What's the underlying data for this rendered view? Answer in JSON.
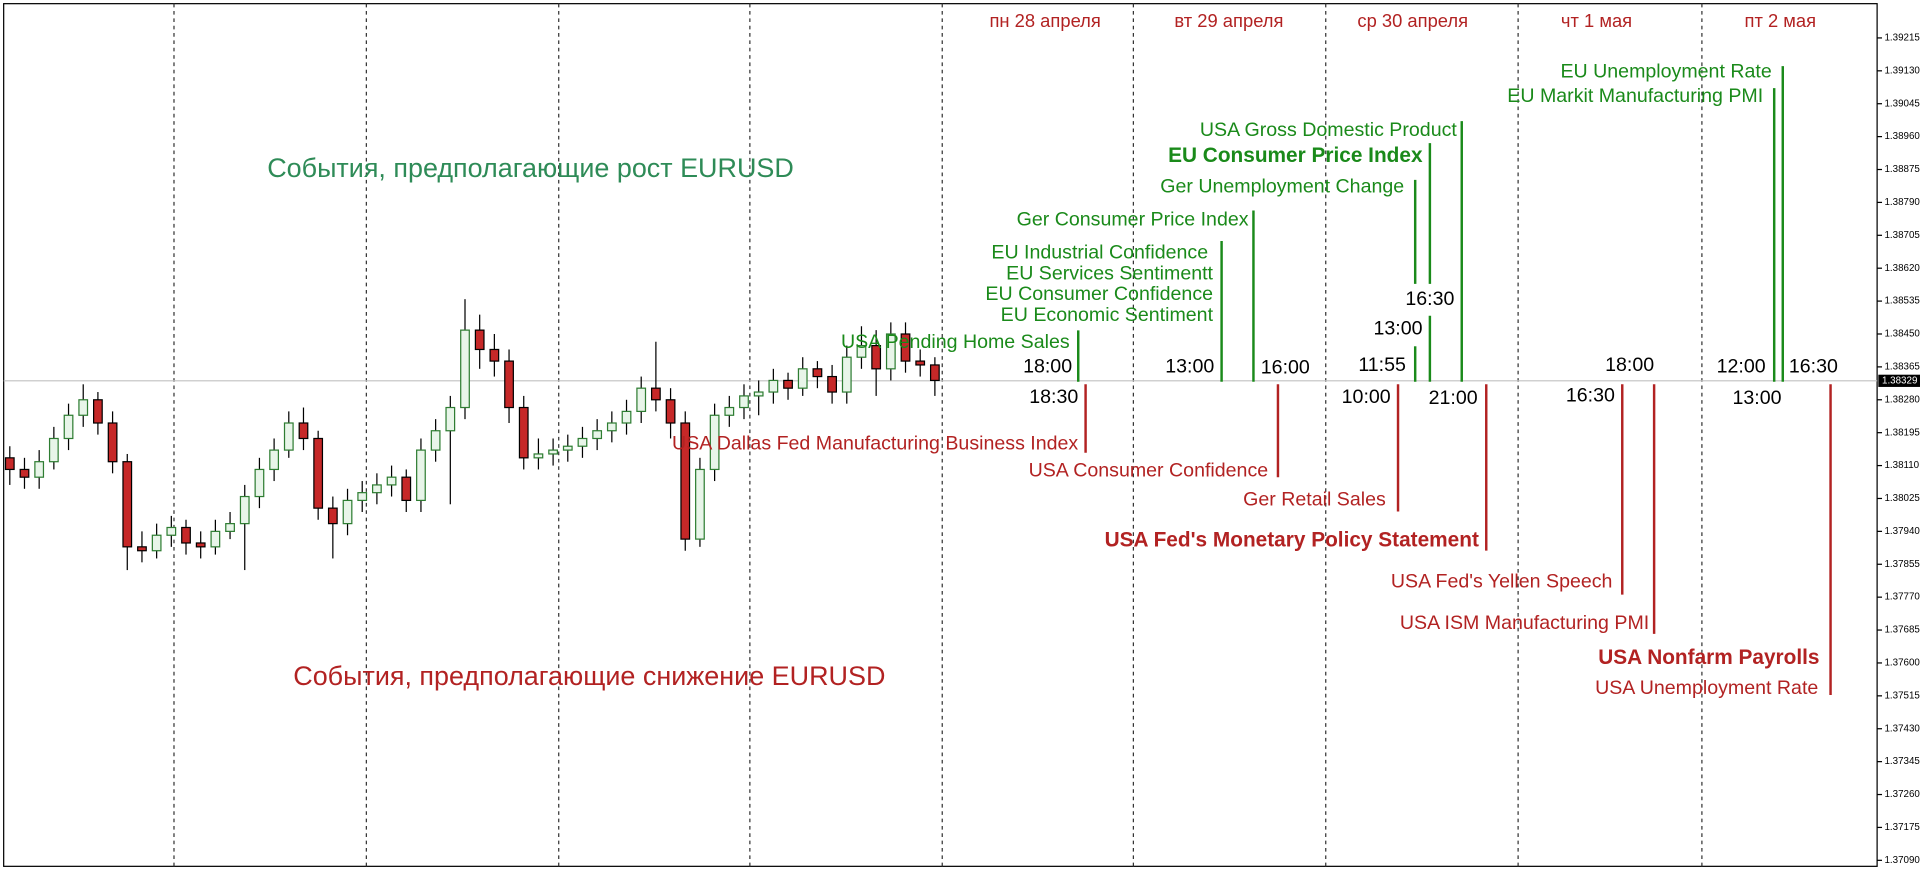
{
  "chart_data": {
    "type": "candlestick",
    "days": [
      "пн 28 апреля",
      "вт 29 апреля",
      "ср 30 апреля",
      "чт 1 мая",
      "пт 2 мая"
    ],
    "heading_rise": "События, предполагающие рост EURUSD",
    "heading_fall": "События, предполагающие снижение EURUSD",
    "events": [
      "USA Pending Home Sales",
      "EU Industrial Confidence",
      "EU Services Sentimentt",
      "EU Consumer Confidence",
      "EU Economic Sentiment",
      "Ger Consumer Price Index",
      "Ger Unemployment Change",
      "EU Consumer Price Index",
      "USA Gross Domestic Product",
      "EU Markit Manufacturing PMI",
      "EU Unemployment Rate",
      "USA Dallas Fed Manufacturing Business Index",
      "USA Consumer Confidence",
      "Ger Retail Sales",
      "USA Fed's Monetary Policy Statement",
      "USA Fed's Yellen Speech",
      "USA ISM Manufacturing PMI",
      "USA Nonfarm Payrolls",
      "USA Unemployment Rate"
    ],
    "times": [
      "18:00",
      "13:00",
      "16:00",
      "11:55",
      "13:00",
      "16:30",
      "18:00",
      "12:00",
      "16:30",
      "18:30",
      "10:00",
      "21:00",
      "16:30",
      "13:00"
    ],
    "up_color": "#2e7d32",
    "down_color": "#c62828",
    "last_price": 1.38329,
    "ylim": [
      1.37065,
      1.39313
    ],
    "yticks": [
      1.39215,
      {
        "value": 1.3913,
        "label": "1.39130"
      },
      1.39045,
      {
        "value": 1.3896,
        "label": "1.38960"
      },
      1.38875,
      {
        "value": 1.3879,
        "label": "1.38790"
      },
      1.38705,
      {
        "value": 1.3862,
        "label": "1.38620"
      },
      1.38535,
      {
        "value": 1.3845,
        "label": "1.38450"
      },
      1.38365,
      {
        "value": 1.3828,
        "label": "1.38280"
      },
      1.38195,
      {
        "value": 1.3811,
        "label": "1.38110"
      },
      1.38025,
      {
        "value": 1.3794,
        "label": "1.37940"
      },
      1.37855,
      {
        "value": 1.3777,
        "label": "1.37770"
      },
      1.37685,
      {
        "value": 1.376,
        "label": "1.37600"
      },
      1.37515,
      {
        "value": 1.3743,
        "label": "1.37430"
      },
      1.37345,
      {
        "value": 1.3726,
        "label": "1.37260"
      },
      1.37175,
      {
        "value": 1.3709,
        "label": "1.37090"
      }
    ],
    "open": [
      1.3813,
      1.381,
      1.3808,
      1.3812,
      1.3818,
      1.3824,
      1.3828,
      1.3822,
      1.3812,
      1.379,
      1.3789,
      1.3793,
      1.3795,
      1.3791,
      1.379,
      1.3794,
      1.3796,
      1.3803,
      1.381,
      1.3815,
      1.3822,
      1.3818,
      1.38,
      1.3796,
      1.3802,
      1.3804,
      1.3806,
      1.3808,
      1.3802,
      1.3815,
      1.382,
      1.3826,
      1.3846,
      1.3841,
      1.3838,
      1.3826,
      1.3813,
      1.3814,
      1.3815,
      1.3816,
      1.3818,
      1.382,
      1.3822,
      1.3825,
      1.3831,
      1.3828,
      1.3822,
      1.3792,
      1.381,
      1.3824,
      1.3826,
      1.3829,
      1.383,
      1.3833,
      1.3831,
      1.3836,
      1.3834,
      1.383,
      1.3839,
      1.3842,
      1.3836,
      1.3845,
      1.3838,
      1.3837
    ],
    "high": [
      1.3816,
      1.3813,
      1.3815,
      1.3821,
      1.3827,
      1.3832,
      1.383,
      1.3825,
      1.3814,
      1.3794,
      1.3796,
      1.3798,
      1.3797,
      1.3794,
      1.3797,
      1.3799,
      1.3806,
      1.3813,
      1.3818,
      1.3825,
      1.3826,
      1.382,
      1.3803,
      1.3805,
      1.3807,
      1.3809,
      1.3811,
      1.381,
      1.3818,
      1.3823,
      1.3829,
      1.3854,
      1.385,
      1.3845,
      1.3841,
      1.3829,
      1.3818,
      1.3818,
      1.3819,
      1.3821,
      1.3823,
      1.3825,
      1.3828,
      1.3834,
      1.3843,
      1.3831,
      1.3825,
      1.3813,
      1.3827,
      1.3829,
      1.3832,
      1.3833,
      1.3836,
      1.3835,
      1.3839,
      1.3838,
      1.3837,
      1.3842,
      1.3847,
      1.3846,
      1.3848,
      1.3848,
      1.3841,
      1.3839
    ],
    "low": [
      1.3806,
      1.3805,
      1.3805,
      1.381,
      1.3815,
      1.3821,
      1.3819,
      1.3809,
      1.3784,
      1.3786,
      1.3787,
      1.379,
      1.3788,
      1.3787,
      1.3788,
      1.3792,
      1.3784,
      1.38,
      1.3807,
      1.3813,
      1.3815,
      1.3797,
      1.3787,
      1.3793,
      1.3799,
      1.3801,
      1.3803,
      1.3799,
      1.3799,
      1.3812,
      1.3801,
      1.3823,
      1.3836,
      1.3834,
      1.3822,
      1.381,
      1.381,
      1.3811,
      1.3812,
      1.3813,
      1.3815,
      1.3817,
      1.3819,
      1.3822,
      1.3825,
      1.3818,
      1.3789,
      1.379,
      1.3807,
      1.3821,
      1.3823,
      1.3824,
      1.3827,
      1.3828,
      1.3829,
      1.3831,
      1.3827,
      1.3827,
      1.3836,
      1.3829,
      1.3833,
      1.3835,
      1.3834,
      1.3829
    ],
    "close": [
      1.381,
      1.3808,
      1.3812,
      1.3818,
      1.3824,
      1.3828,
      1.3822,
      1.3812,
      1.379,
      1.3789,
      1.3793,
      1.3795,
      1.3791,
      1.379,
      1.3794,
      1.3796,
      1.3803,
      1.381,
      1.3815,
      1.3822,
      1.3818,
      1.38,
      1.3796,
      1.3802,
      1.3804,
      1.3806,
      1.3808,
      1.3802,
      1.3815,
      1.382,
      1.3826,
      1.3846,
      1.3841,
      1.3838,
      1.3826,
      1.3813,
      1.3814,
      1.3815,
      1.3816,
      1.3818,
      1.382,
      1.3822,
      1.3825,
      1.3831,
      1.3828,
      1.3822,
      1.3792,
      1.381,
      1.3824,
      1.3826,
      1.3829,
      1.383,
      1.3833,
      1.3831,
      1.3836,
      1.3834,
      1.383,
      1.3839,
      1.3842,
      1.3836,
      1.3845,
      1.3838,
      1.3837,
      1.3833
    ]
  }
}
